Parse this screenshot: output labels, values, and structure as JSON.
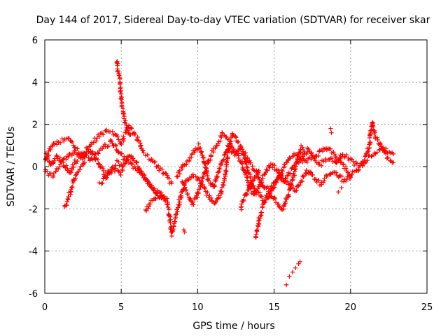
{
  "chart_data": {
    "type": "scatter",
    "title": "Day 144 of 2017, Sidereal Day-to-day VTEC variation (SDTVAR) for receiver skar",
    "xlabel": "GPS time / hours",
    "ylabel": "SDTVAR / TECUs",
    "xlim": [
      0,
      25
    ],
    "ylim": [
      -6,
      6
    ],
    "x_ticks": [
      0,
      5,
      10,
      15,
      20,
      25
    ],
    "y_ticks": [
      -6,
      -4,
      -2,
      0,
      2,
      4,
      6
    ],
    "x_tick_labels": [
      "0",
      "5",
      "10",
      "15",
      "20",
      "25"
    ],
    "y_tick_labels": [
      "-6",
      "-4",
      "-2",
      "0",
      "2",
      "4",
      "6"
    ],
    "grid": true,
    "marker": "+",
    "color": "#ff0000",
    "series": [
      {
        "name": "SDTVAR",
        "trace_keypoints": [
          {
            "name": "track-a",
            "points": [
              [
                0.0,
                0.3
              ],
              [
                0.5,
                1.0
              ],
              [
                1.0,
                1.2
              ],
              [
                1.5,
                1.3
              ],
              [
                2.0,
                0.9
              ],
              [
                2.5,
                0.5
              ],
              [
                3.0,
                1.1
              ],
              [
                3.5,
                1.4
              ],
              [
                4.0,
                1.7
              ],
              [
                4.5,
                1.6
              ],
              [
                5.0,
                1.1
              ],
              [
                5.5,
                1.9
              ],
              [
                6.0,
                1.4
              ],
              [
                6.5,
                0.6
              ],
              [
                7.0,
                0.3
              ],
              [
                7.5,
                -0.1
              ],
              [
                8.0,
                -0.5
              ],
              [
                8.3,
                -0.8
              ]
            ]
          },
          {
            "name": "track-b",
            "points": [
              [
                0.0,
                0.6
              ],
              [
                0.4,
                0.1
              ],
              [
                0.8,
                0.5
              ],
              [
                1.2,
                0.2
              ],
              [
                1.6,
                -0.3
              ],
              [
                2.0,
                0.2
              ],
              [
                2.5,
                0.6
              ],
              [
                3.0,
                0.3
              ],
              [
                3.5,
                0.7
              ],
              [
                4.0,
                1.0
              ],
              [
                4.4,
                1.2
              ],
              [
                4.8,
                0.7
              ],
              [
                5.2,
                0.4
              ],
              [
                5.8,
                0.0
              ],
              [
                6.3,
                -0.3
              ],
              [
                6.8,
                -0.8
              ],
              [
                7.3,
                -1.2
              ],
              [
                7.8,
                -1.4
              ]
            ]
          },
          {
            "name": "track-c",
            "points": [
              [
                0.0,
                -0.2
              ],
              [
                0.5,
                -0.4
              ],
              [
                1.0,
                0.1
              ],
              [
                1.5,
                0.5
              ],
              [
                2.0,
                0.7
              ],
              [
                2.5,
                0.4
              ],
              [
                3.0,
                0.8
              ],
              [
                3.5,
                0.2
              ],
              [
                4.0,
                -0.4
              ],
              [
                4.5,
                -0.1
              ],
              [
                5.0,
                -0.3
              ],
              [
                5.5,
                0.6
              ],
              [
                6.0,
                0.2
              ],
              [
                6.5,
                -0.5
              ],
              [
                7.0,
                -1.0
              ],
              [
                7.5,
                -1.4
              ],
              [
                8.0,
                -1.5
              ]
            ]
          },
          {
            "name": "track-d",
            "points": [
              [
                1.3,
                -1.9
              ],
              [
                1.5,
                -1.6
              ],
              [
                1.7,
                -1.1
              ],
              [
                1.9,
                -0.6
              ],
              [
                2.2,
                -0.2
              ],
              [
                2.6,
                0.2
              ]
            ]
          },
          {
            "name": "track-e",
            "points": [
              [
                3.6,
                -0.8
              ],
              [
                4.0,
                -0.5
              ],
              [
                4.4,
                -0.1
              ],
              [
                4.7,
                0.2
              ],
              [
                5.0,
                0.1
              ]
            ]
          },
          {
            "name": "spike",
            "points": [
              [
                4.7,
                5.0
              ],
              [
                4.8,
                4.5
              ],
              [
                4.9,
                4.0
              ],
              [
                5.0,
                3.2
              ],
              [
                5.1,
                2.6
              ],
              [
                5.25,
                2.1
              ],
              [
                5.4,
                1.8
              ],
              [
                5.6,
                1.5
              ]
            ]
          },
          {
            "name": "track-f",
            "points": [
              [
                6.6,
                -2.1
              ],
              [
                6.9,
                -1.7
              ],
              [
                7.2,
                -1.5
              ],
              [
                7.6,
                -1.4
              ],
              [
                8.0,
                -1.6
              ],
              [
                8.2,
                -2.6
              ],
              [
                8.3,
                -3.2
              ],
              [
                8.6,
                -2.3
              ],
              [
                8.9,
                -1.4
              ],
              [
                9.2,
                -0.7
              ],
              [
                9.6,
                -0.4
              ],
              [
                10.0,
                -0.6
              ],
              [
                10.4,
                -1.0
              ],
              [
                10.8,
                -1.5
              ],
              [
                11.1,
                -1.8
              ],
              [
                11.5,
                -1.3
              ],
              [
                11.8,
                -0.5
              ],
              [
                12.0,
                0.8
              ],
              [
                12.3,
                1.6
              ],
              [
                12.6,
                1.2
              ],
              [
                13.0,
                0.5
              ],
              [
                13.3,
                -0.2
              ],
              [
                13.6,
                -0.9
              ],
              [
                14.0,
                -1.2
              ],
              [
                14.3,
                -1.6
              ],
              [
                14.7,
                -1.3
              ],
              [
                15.0,
                -0.8
              ],
              [
                15.4,
                -0.5
              ],
              [
                15.7,
                0.1
              ],
              [
                16.0,
                0.4
              ],
              [
                16.5,
                0.6
              ],
              [
                17.0,
                0.2
              ],
              [
                17.5,
                0.5
              ],
              [
                18.0,
                0.1
              ],
              [
                18.5,
                0.4
              ],
              [
                19.0,
                0.2
              ],
              [
                19.5,
                0.6
              ],
              [
                20.0,
                0.3
              ],
              [
                20.5,
                0.0
              ],
              [
                21.0,
                0.3
              ],
              [
                21.5,
                0.6
              ],
              [
                22.0,
                0.9
              ],
              [
                22.5,
                0.7
              ],
              [
                22.8,
                0.6
              ]
            ]
          },
          {
            "name": "track-g",
            "points": [
              [
                8.6,
                -0.5
              ],
              [
                9.0,
                0.0
              ],
              [
                9.4,
                0.3
              ],
              [
                9.8,
                0.8
              ],
              [
                10.1,
                1.0
              ],
              [
                10.4,
                0.3
              ],
              [
                10.7,
                -0.6
              ],
              [
                11.0,
                -1.0
              ],
              [
                11.3,
                -0.4
              ],
              [
                11.6,
                0.3
              ],
              [
                12.0,
                0.9
              ],
              [
                12.4,
                0.6
              ],
              [
                12.8,
                0.9
              ],
              [
                13.1,
                0.6
              ],
              [
                13.5,
                0.1
              ],
              [
                13.9,
                -0.3
              ],
              [
                14.2,
                -0.8
              ],
              [
                14.6,
                -1.1
              ],
              [
                15.0,
                -0.9
              ],
              [
                15.3,
                -0.4
              ],
              [
                15.6,
                -0.7
              ],
              [
                16.0,
                -0.3
              ],
              [
                16.4,
                0.1
              ],
              [
                16.8,
                0.4
              ],
              [
                17.2,
                0.8
              ],
              [
                17.6,
                0.4
              ],
              [
                18.0,
                0.7
              ],
              [
                18.4,
                0.9
              ],
              [
                18.8,
                0.7
              ],
              [
                19.2,
                0.4
              ],
              [
                19.6,
                0.0
              ],
              [
                20.0,
                -0.4
              ],
              [
                20.4,
                -0.2
              ],
              [
                20.8,
                0.2
              ],
              [
                21.2,
                0.9
              ],
              [
                21.4,
                2.1
              ],
              [
                21.6,
                1.4
              ],
              [
                22.0,
                1.0
              ],
              [
                22.4,
                0.4
              ],
              [
                22.8,
                0.2
              ]
            ]
          },
          {
            "name": "track-h",
            "points": [
              [
                9.0,
                -0.8
              ],
              [
                9.4,
                -1.4
              ],
              [
                9.7,
                -1.8
              ],
              [
                10.0,
                -1.3
              ],
              [
                10.3,
                -0.6
              ],
              [
                10.6,
                0.0
              ],
              [
                10.9,
                0.6
              ],
              [
                11.2,
                1.0
              ],
              [
                11.6,
                1.5
              ],
              [
                12.0,
                1.2
              ],
              [
                12.4,
                0.8
              ],
              [
                12.8,
                0.3
              ],
              [
                13.1,
                -0.3
              ],
              [
                13.4,
                -1.0
              ],
              [
                13.7,
                -1.4
              ],
              [
                14.0,
                -1.0
              ],
              [
                14.4,
                -0.3
              ],
              [
                14.8,
                0.1
              ],
              [
                15.2,
                -0.2
              ],
              [
                15.6,
                -0.6
              ],
              [
                16.0,
                -0.9
              ],
              [
                16.4,
                -1.1
              ],
              [
                16.8,
                -0.6
              ],
              [
                17.2,
                -0.2
              ],
              [
                17.6,
                -0.5
              ],
              [
                18.0,
                -0.8
              ],
              [
                18.4,
                -0.5
              ],
              [
                18.8,
                -0.2
              ],
              [
                19.2,
                -0.4
              ],
              [
                19.6,
                -0.7
              ],
              [
                20.0,
                -0.5
              ]
            ]
          },
          {
            "name": "track-i",
            "points": [
              [
                13.8,
                -3.4
              ],
              [
                14.0,
                -2.6
              ],
              [
                14.2,
                -2.0
              ],
              [
                14.4,
                -1.6
              ],
              [
                14.8,
                -1.3
              ],
              [
                15.2,
                -1.7
              ],
              [
                15.6,
                -2.0
              ],
              [
                15.9,
                -1.4
              ],
              [
                16.2,
                -0.6
              ],
              [
                16.5,
                0.3
              ],
              [
                16.8,
                0.9
              ],
              [
                17.0,
                0.7
              ]
            ]
          },
          {
            "name": "track-j",
            "points": [
              [
                12.8,
                -2.0
              ],
              [
                13.1,
                -1.4
              ],
              [
                13.4,
                -1.0
              ],
              [
                13.7,
                -0.6
              ],
              [
                14.0,
                -0.2
              ]
            ]
          },
          {
            "name": "low-cluster",
            "points": [
              [
                15.8,
                -5.6
              ],
              [
                16.0,
                -5.2
              ],
              [
                16.2,
                -5.0
              ],
              [
                16.4,
                -4.8
              ],
              [
                16.6,
                -4.6
              ],
              [
                16.7,
                -4.5
              ]
            ]
          },
          {
            "name": "isolated",
            "points": [
              [
                9.1,
                -3.0
              ],
              [
                9.15,
                -3.1
              ],
              [
                18.7,
                1.8
              ],
              [
                18.75,
                1.6
              ],
              [
                19.2,
                -1.2
              ],
              [
                19.4,
                -1.0
              ]
            ]
          }
        ]
      }
    ]
  }
}
